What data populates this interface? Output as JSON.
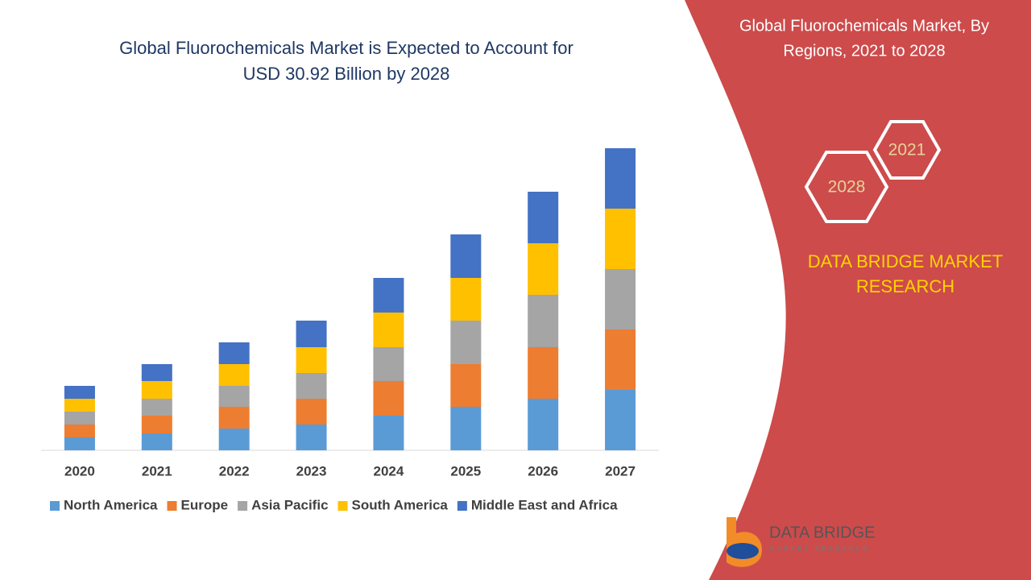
{
  "chart_data": {
    "type": "stacked_bar",
    "title": [
      "Global Fluorochemicals Market is Expected to Account for",
      "USD 30.92 Billion by 2028"
    ],
    "categories": [
      "2020",
      "2021",
      "2022",
      "2023",
      "2024",
      "2025",
      "2026",
      "2027"
    ],
    "series": [
      {
        "name": "North America",
        "color": "#5b9bd5",
        "values": [
          16,
          21,
          27,
          32,
          43,
          54,
          64,
          75
        ]
      },
      {
        "name": "Europe",
        "color": "#ed7d31",
        "values": [
          16,
          22,
          27,
          32,
          43,
          53,
          64,
          75
        ]
      },
      {
        "name": "Asia Pacific",
        "color": "#a5a5a5",
        "values": [
          16,
          21,
          26,
          32,
          42,
          54,
          65,
          75
        ]
      },
      {
        "name": "South America",
        "color": "#ffc000",
        "values": [
          16,
          22,
          27,
          32,
          43,
          53,
          64,
          75
        ]
      },
      {
        "name": "Middle East and Africa",
        "color": "#4472c4",
        "values": [
          16,
          21,
          27,
          33,
          43,
          54,
          64,
          75
        ]
      }
    ],
    "ylim": [
      0,
      375
    ],
    "legend": "bottom"
  },
  "side_panel": {
    "title": [
      "Global Fluorochemicals Market, By",
      "Regions, 2021 to 2028"
    ],
    "hexagons": [
      "2021",
      "2028"
    ],
    "brand": [
      "DATA BRIDGE MARKET",
      "RESEARCH"
    ]
  },
  "logo": {
    "name": "DATA BRIDGE",
    "tagline": "MARKET RESEARCH"
  }
}
